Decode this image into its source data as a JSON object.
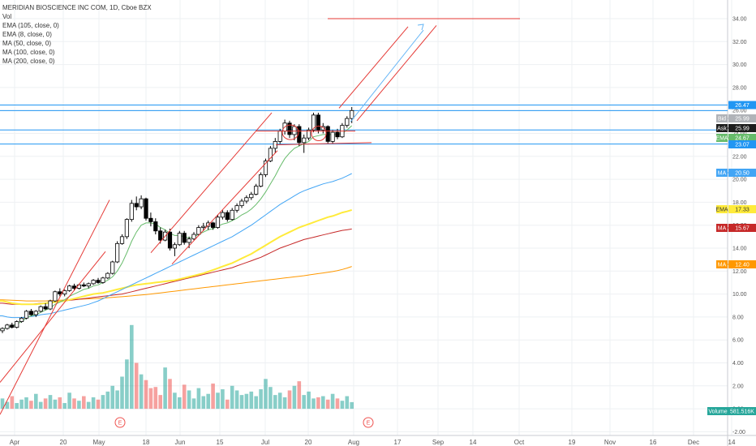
{
  "legend": {
    "title": "MERIDIAN BIOSCIENCE INC COM, 1D, Cboe BZX",
    "vol": "Vol",
    "ema105": "EMA (105, close, 0)",
    "ema8": "EMA (8, close, 0)",
    "ma50": "MA (50, close, 0)",
    "ma100": "MA (100, close, 0)",
    "ma200": "MA (200, close, 0)"
  },
  "colors": {
    "up": "#26a69a",
    "down": "#ef5350",
    "ema8": "#66bb6a",
    "ma50": "#42a5f5",
    "ema105": "#ffeb3b",
    "ma100": "#c62828",
    "ma200": "#ff9800",
    "hline": "#2196f3",
    "drawing": "#e53935"
  },
  "chart_data": {
    "type": "candlestick",
    "symbol": "MERIDIAN BIOSCIENCE INC COM",
    "interval": "1D",
    "exchange": "Cboe BZX",
    "x_ticks": [
      "Apr",
      "20",
      "May",
      "18",
      "Jun",
      "15",
      "Jul",
      "20",
      "Aug",
      "17",
      "Sep",
      "14",
      "Oct",
      "19",
      "Nov",
      "16",
      "Dec",
      "14"
    ],
    "y_ticks": [
      "34.00",
      "32.00",
      "30.00",
      "28.00",
      "26.00",
      "24.00",
      "22.00",
      "20.00",
      "18.00",
      "16.00",
      "14.00",
      "12.00",
      "10.00",
      "8.00",
      "6.00",
      "4.00",
      "2.00",
      "0.00",
      "-2.00"
    ],
    "ylim": [
      -2.5,
      35.5
    ],
    "top_line_value": "26.47",
    "price_labels": [
      {
        "label": "Bid",
        "value": "25.99"
      },
      {
        "label": "Ask",
        "value": "25.99"
      },
      {
        "label": "EMA",
        "value": "24.67"
      },
      {
        "label": "",
        "value": "23.07"
      },
      {
        "label": "MA",
        "value": "20.50"
      },
      {
        "label": "EMA",
        "value": "17.33"
      },
      {
        "label": "MA",
        "value": "15.67"
      },
      {
        "label": "MA",
        "value": "12.40"
      },
      {
        "label": "Volume",
        "value": "581.516K"
      }
    ],
    "hlines": [
      26.47,
      25.99,
      24.3,
      23.07
    ],
    "candles": [
      [
        6.8,
        7.1,
        6.6,
        7.0
      ],
      [
        7.0,
        7.4,
        6.9,
        7.3
      ],
      [
        7.3,
        7.5,
        7.0,
        7.1
      ],
      [
        7.1,
        7.7,
        7.0,
        7.6
      ],
      [
        7.6,
        8.0,
        7.5,
        7.9
      ],
      [
        7.9,
        8.6,
        7.8,
        8.5
      ],
      [
        8.5,
        8.7,
        8.1,
        8.2
      ],
      [
        8.2,
        8.6,
        8.0,
        8.5
      ],
      [
        8.5,
        9.0,
        8.4,
        8.9
      ],
      [
        8.9,
        9.2,
        8.6,
        8.7
      ],
      [
        8.7,
        9.5,
        8.6,
        9.4
      ],
      [
        9.4,
        10.3,
        9.3,
        10.2
      ],
      [
        10.2,
        10.5,
        9.8,
        10.0
      ],
      [
        10.0,
        10.4,
        9.8,
        10.3
      ],
      [
        10.3,
        10.8,
        10.2,
        10.7
      ],
      [
        10.7,
        10.9,
        10.3,
        10.5
      ],
      [
        10.5,
        10.9,
        10.4,
        10.8
      ],
      [
        10.8,
        11.0,
        10.6,
        10.7
      ],
      [
        10.7,
        11.0,
        10.5,
        10.9
      ],
      [
        10.9,
        11.3,
        10.8,
        11.2
      ],
      [
        11.2,
        11.4,
        10.9,
        11.0
      ],
      [
        11.0,
        11.5,
        10.9,
        11.4
      ],
      [
        11.4,
        11.9,
        11.3,
        11.8
      ],
      [
        11.8,
        12.9,
        11.7,
        12.8
      ],
      [
        12.8,
        14.6,
        12.7,
        14.4
      ],
      [
        14.4,
        15.2,
        14.3,
        15.0
      ],
      [
        15.0,
        16.6,
        14.8,
        16.5
      ],
      [
        16.5,
        18.2,
        16.3,
        17.9
      ],
      [
        17.9,
        18.5,
        17.3,
        17.6
      ],
      [
        17.6,
        18.6,
        17.4,
        18.3
      ],
      [
        18.3,
        18.4,
        16.4,
        16.6
      ],
      [
        16.6,
        17.1,
        15.9,
        16.3
      ],
      [
        16.3,
        16.6,
        15.2,
        15.5
      ],
      [
        15.5,
        15.8,
        14.4,
        14.7
      ],
      [
        14.7,
        15.6,
        14.6,
        15.4
      ],
      [
        15.4,
        15.7,
        13.8,
        14.0
      ],
      [
        14.0,
        14.5,
        13.3,
        14.3
      ],
      [
        14.3,
        15.5,
        14.2,
        15.3
      ],
      [
        15.3,
        15.5,
        14.3,
        14.5
      ],
      [
        14.5,
        15.0,
        14.0,
        14.8
      ],
      [
        14.8,
        15.4,
        14.7,
        15.2
      ],
      [
        15.2,
        16.0,
        15.1,
        15.8
      ],
      [
        15.8,
        16.2,
        15.5,
        15.9
      ],
      [
        15.9,
        16.4,
        15.6,
        16.2
      ],
      [
        16.2,
        16.3,
        15.6,
        15.8
      ],
      [
        15.8,
        16.9,
        15.7,
        16.7
      ],
      [
        16.7,
        17.3,
        16.5,
        17.1
      ],
      [
        17.1,
        17.3,
        16.3,
        16.5
      ],
      [
        16.5,
        17.5,
        16.4,
        17.3
      ],
      [
        17.3,
        17.9,
        17.1,
        17.7
      ],
      [
        17.7,
        18.3,
        17.5,
        18.1
      ],
      [
        18.1,
        18.6,
        17.9,
        18.4
      ],
      [
        18.4,
        18.9,
        18.2,
        18.7
      ],
      [
        18.7,
        19.6,
        18.6,
        19.4
      ],
      [
        19.4,
        20.6,
        19.3,
        20.4
      ],
      [
        20.4,
        21.8,
        20.2,
        21.6
      ],
      [
        21.6,
        22.9,
        21.5,
        22.7
      ],
      [
        22.7,
        23.6,
        22.3,
        23.3
      ],
      [
        23.3,
        24.4,
        23.1,
        24.2
      ],
      [
        24.2,
        25.2,
        23.9,
        24.9
      ],
      [
        24.9,
        25.1,
        23.6,
        23.9
      ],
      [
        23.9,
        24.8,
        23.4,
        24.6
      ],
      [
        24.6,
        24.8,
        22.9,
        23.2
      ],
      [
        23.2,
        23.9,
        22.3,
        23.6
      ],
      [
        23.6,
        24.5,
        23.4,
        24.3
      ],
      [
        24.3,
        25.8,
        24.1,
        25.6
      ],
      [
        25.6,
        25.8,
        24.0,
        24.3
      ],
      [
        24.3,
        24.9,
        24.0,
        24.6
      ],
      [
        24.6,
        24.7,
        23.1,
        23.3
      ],
      [
        23.3,
        24.3,
        23.1,
        24.1
      ],
      [
        24.1,
        24.4,
        23.5,
        23.7
      ],
      [
        23.7,
        24.9,
        23.6,
        24.7
      ],
      [
        24.7,
        25.5,
        24.5,
        25.3
      ],
      [
        25.3,
        26.3,
        24.9,
        25.99
      ]
    ],
    "volume": [
      0.9,
      0.6,
      1.1,
      0.5,
      0.8,
      1.0,
      0.7,
      1.3,
      0.6,
      0.9,
      1.2,
      0.8,
      1.0,
      0.5,
      1.4,
      0.9,
      0.7,
      1.1,
      0.6,
      1.0,
      0.8,
      1.2,
      1.5,
      2.0,
      1.6,
      2.8,
      4.3,
      7.3,
      4.0,
      3.0,
      2.5,
      1.8,
      1.9,
      1.2,
      3.6,
      2.6,
      1.4,
      1.0,
      2.1,
      1.6,
      0.9,
      1.8,
      1.1,
      1.3,
      2.2,
      1.4,
      1.7,
      0.8,
      2.0,
      1.6,
      1.2,
      1.3,
      1.5,
      1.1,
      1.7,
      2.6,
      1.9,
      1.2,
      1.4,
      1.0,
      1.6,
      2.0,
      2.4,
      1.2,
      1.5,
      0.9,
      1.0,
      1.1,
      0.8,
      1.3,
      0.9,
      0.7,
      1.1,
      0.58
    ],
    "ema8": [
      6.9,
      7.1,
      7.2,
      7.4,
      7.6,
      7.9,
      8.1,
      8.2,
      8.4,
      8.6,
      8.8,
      9.1,
      9.3,
      9.5,
      9.8,
      10.0,
      10.2,
      10.4,
      10.5,
      10.7,
      10.8,
      11.0,
      11.2,
      11.5,
      12.0,
      12.7,
      13.6,
      14.6,
      15.4,
      16.0,
      16.2,
      16.2,
      16.1,
      15.8,
      15.6,
      15.3,
      15.1,
      15.1,
      15.0,
      14.9,
      15.0,
      15.2,
      15.4,
      15.6,
      15.7,
      15.9,
      16.1,
      16.2,
      16.4,
      16.6,
      16.9,
      17.1,
      17.4,
      17.8,
      18.3,
      18.9,
      19.6,
      20.3,
      21.1,
      21.8,
      22.3,
      22.7,
      22.9,
      23.1,
      23.3,
      23.7,
      23.8,
      23.9,
      23.9,
      23.9,
      23.9,
      24.0,
      24.3,
      24.67
    ],
    "ma50": [
      8.1,
      8.0,
      7.95,
      7.95,
      7.95,
      8.0,
      8.05,
      8.1,
      8.2,
      8.25,
      8.3,
      8.4,
      8.5,
      8.6,
      8.7,
      8.8,
      8.9,
      9.0,
      9.1,
      9.25,
      9.4,
      9.6,
      9.8,
      10.0,
      10.2,
      10.4,
      10.6,
      10.8,
      11.0,
      11.2,
      11.4,
      11.6,
      11.8,
      12.0,
      12.2,
      12.4,
      12.6,
      12.8,
      13.0,
      13.2,
      13.4,
      13.6,
      13.8,
      14.0,
      14.2,
      14.4,
      14.6,
      14.8,
      15.0,
      15.25,
      15.5,
      15.75,
      16.0,
      16.3,
      16.6,
      16.9,
      17.2,
      17.5,
      17.8,
      18.05,
      18.3,
      18.55,
      18.8,
      19.0,
      19.15,
      19.3,
      19.45,
      19.6,
      19.7,
      19.8,
      19.95,
      20.1,
      20.3,
      20.5
    ],
    "ema105": [
      9.4,
      9.3,
      9.2,
      9.15,
      9.1,
      9.1,
      9.1,
      9.1,
      9.15,
      9.2,
      9.25,
      9.3,
      9.35,
      9.4,
      9.5,
      9.6,
      9.7,
      9.8,
      9.9,
      10.0,
      10.05,
      10.1,
      10.2,
      10.3,
      10.4,
      10.5,
      10.6,
      10.7,
      10.8,
      10.85,
      10.9,
      10.95,
      11.0,
      11.05,
      11.1,
      11.15,
      11.2,
      11.3,
      11.4,
      11.5,
      11.6,
      11.7,
      11.8,
      11.95,
      12.1,
      12.25,
      12.4,
      12.55,
      12.7,
      12.9,
      13.1,
      13.3,
      13.5,
      13.75,
      14.0,
      14.25,
      14.5,
      14.75,
      15.0,
      15.2,
      15.4,
      15.6,
      15.8,
      15.95,
      16.1,
      16.25,
      16.4,
      16.55,
      16.7,
      16.8,
      16.95,
      17.1,
      17.2,
      17.33
    ],
    "ma100": [
      9.2,
      9.15,
      9.1,
      9.1,
      9.1,
      9.1,
      9.1,
      9.15,
      9.2,
      9.2,
      9.25,
      9.3,
      9.35,
      9.4,
      9.45,
      9.5,
      9.55,
      9.6,
      9.65,
      9.7,
      9.75,
      9.8,
      9.85,
      9.9,
      9.95,
      10.0,
      10.1,
      10.2,
      10.3,
      10.4,
      10.5,
      10.6,
      10.7,
      10.8,
      10.9,
      11.0,
      11.1,
      11.2,
      11.3,
      11.4,
      11.5,
      11.6,
      11.7,
      11.8,
      11.9,
      12.0,
      12.1,
      12.2,
      12.3,
      12.45,
      12.6,
      12.75,
      12.9,
      13.05,
      13.2,
      13.4,
      13.6,
      13.8,
      14.0,
      14.15,
      14.3,
      14.45,
      14.6,
      14.75,
      14.85,
      14.95,
      15.05,
      15.15,
      15.25,
      15.35,
      15.45,
      15.55,
      15.6,
      15.67
    ],
    "ma200": [
      9.5,
      9.48,
      9.46,
      9.44,
      9.42,
      9.4,
      9.4,
      9.4,
      9.4,
      9.4,
      9.42,
      9.44,
      9.46,
      9.48,
      9.5,
      9.52,
      9.54,
      9.56,
      9.58,
      9.6,
      9.62,
      9.65,
      9.68,
      9.71,
      9.74,
      9.77,
      9.8,
      9.84,
      9.88,
      9.92,
      9.96,
      10.0,
      10.05,
      10.1,
      10.15,
      10.2,
      10.25,
      10.3,
      10.35,
      10.4,
      10.45,
      10.5,
      10.55,
      10.6,
      10.65,
      10.7,
      10.75,
      10.8,
      10.85,
      10.9,
      10.95,
      11.0,
      11.05,
      11.1,
      11.15,
      11.2,
      11.25,
      11.3,
      11.35,
      11.4,
      11.45,
      11.5,
      11.55,
      11.6,
      11.66,
      11.72,
      11.78,
      11.84,
      11.9,
      11.96,
      12.04,
      12.14,
      12.26,
      12.4
    ]
  }
}
